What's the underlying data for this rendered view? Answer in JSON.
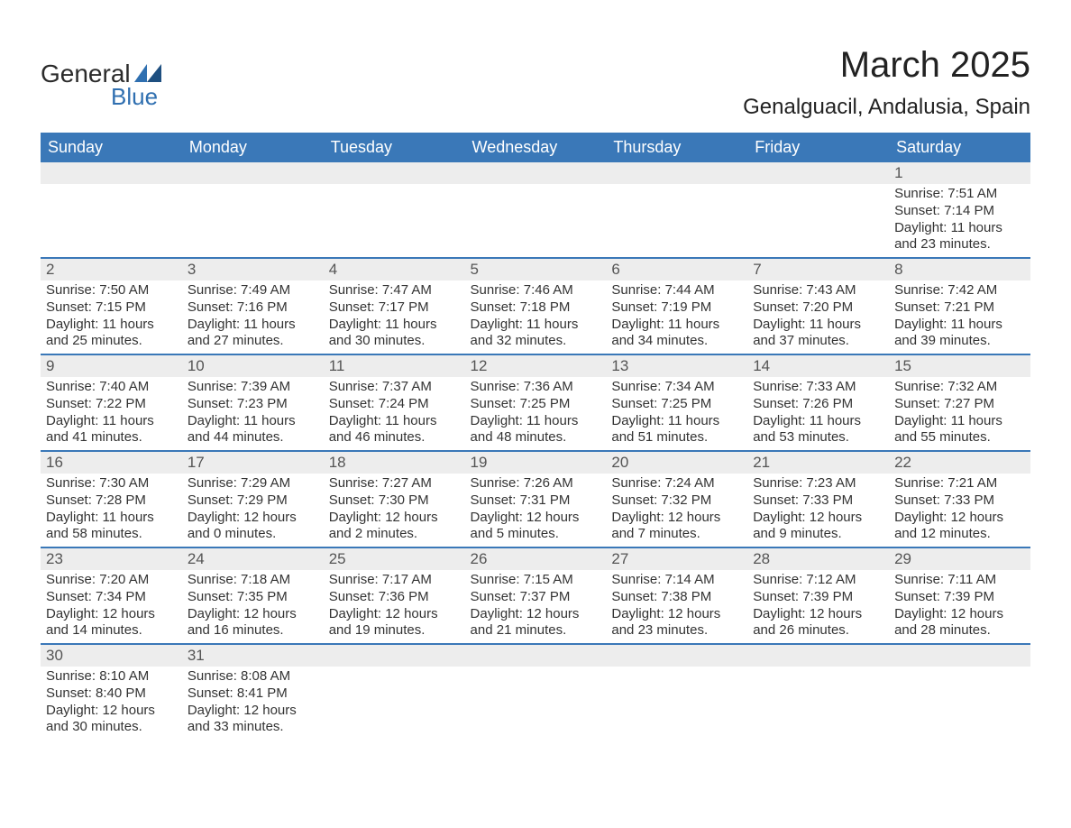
{
  "logo": {
    "line1": "General",
    "line2": "Blue",
    "accent_color": "#2f6fb0"
  },
  "title": {
    "month": "March 2025",
    "location": "Genalguacil, Andalusia, Spain"
  },
  "colors": {
    "header_bg": "#3a78b8",
    "header_text": "#ffffff",
    "row_sep": "#3a78b8",
    "daynum_bg": "#ededed",
    "text": "#333333"
  },
  "weekdays": [
    "Sunday",
    "Monday",
    "Tuesday",
    "Wednesday",
    "Thursday",
    "Friday",
    "Saturday"
  ],
  "weeks": [
    [
      null,
      null,
      null,
      null,
      null,
      null,
      {
        "n": "1",
        "sr": "Sunrise: 7:51 AM",
        "ss": "Sunset: 7:14 PM",
        "d1": "Daylight: 11 hours",
        "d2": "and 23 minutes."
      }
    ],
    [
      {
        "n": "2",
        "sr": "Sunrise: 7:50 AM",
        "ss": "Sunset: 7:15 PM",
        "d1": "Daylight: 11 hours",
        "d2": "and 25 minutes."
      },
      {
        "n": "3",
        "sr": "Sunrise: 7:49 AM",
        "ss": "Sunset: 7:16 PM",
        "d1": "Daylight: 11 hours",
        "d2": "and 27 minutes."
      },
      {
        "n": "4",
        "sr": "Sunrise: 7:47 AM",
        "ss": "Sunset: 7:17 PM",
        "d1": "Daylight: 11 hours",
        "d2": "and 30 minutes."
      },
      {
        "n": "5",
        "sr": "Sunrise: 7:46 AM",
        "ss": "Sunset: 7:18 PM",
        "d1": "Daylight: 11 hours",
        "d2": "and 32 minutes."
      },
      {
        "n": "6",
        "sr": "Sunrise: 7:44 AM",
        "ss": "Sunset: 7:19 PM",
        "d1": "Daylight: 11 hours",
        "d2": "and 34 minutes."
      },
      {
        "n": "7",
        "sr": "Sunrise: 7:43 AM",
        "ss": "Sunset: 7:20 PM",
        "d1": "Daylight: 11 hours",
        "d2": "and 37 minutes."
      },
      {
        "n": "8",
        "sr": "Sunrise: 7:42 AM",
        "ss": "Sunset: 7:21 PM",
        "d1": "Daylight: 11 hours",
        "d2": "and 39 minutes."
      }
    ],
    [
      {
        "n": "9",
        "sr": "Sunrise: 7:40 AM",
        "ss": "Sunset: 7:22 PM",
        "d1": "Daylight: 11 hours",
        "d2": "and 41 minutes."
      },
      {
        "n": "10",
        "sr": "Sunrise: 7:39 AM",
        "ss": "Sunset: 7:23 PM",
        "d1": "Daylight: 11 hours",
        "d2": "and 44 minutes."
      },
      {
        "n": "11",
        "sr": "Sunrise: 7:37 AM",
        "ss": "Sunset: 7:24 PM",
        "d1": "Daylight: 11 hours",
        "d2": "and 46 minutes."
      },
      {
        "n": "12",
        "sr": "Sunrise: 7:36 AM",
        "ss": "Sunset: 7:25 PM",
        "d1": "Daylight: 11 hours",
        "d2": "and 48 minutes."
      },
      {
        "n": "13",
        "sr": "Sunrise: 7:34 AM",
        "ss": "Sunset: 7:25 PM",
        "d1": "Daylight: 11 hours",
        "d2": "and 51 minutes."
      },
      {
        "n": "14",
        "sr": "Sunrise: 7:33 AM",
        "ss": "Sunset: 7:26 PM",
        "d1": "Daylight: 11 hours",
        "d2": "and 53 minutes."
      },
      {
        "n": "15",
        "sr": "Sunrise: 7:32 AM",
        "ss": "Sunset: 7:27 PM",
        "d1": "Daylight: 11 hours",
        "d2": "and 55 minutes."
      }
    ],
    [
      {
        "n": "16",
        "sr": "Sunrise: 7:30 AM",
        "ss": "Sunset: 7:28 PM",
        "d1": "Daylight: 11 hours",
        "d2": "and 58 minutes."
      },
      {
        "n": "17",
        "sr": "Sunrise: 7:29 AM",
        "ss": "Sunset: 7:29 PM",
        "d1": "Daylight: 12 hours",
        "d2": "and 0 minutes."
      },
      {
        "n": "18",
        "sr": "Sunrise: 7:27 AM",
        "ss": "Sunset: 7:30 PM",
        "d1": "Daylight: 12 hours",
        "d2": "and 2 minutes."
      },
      {
        "n": "19",
        "sr": "Sunrise: 7:26 AM",
        "ss": "Sunset: 7:31 PM",
        "d1": "Daylight: 12 hours",
        "d2": "and 5 minutes."
      },
      {
        "n": "20",
        "sr": "Sunrise: 7:24 AM",
        "ss": "Sunset: 7:32 PM",
        "d1": "Daylight: 12 hours",
        "d2": "and 7 minutes."
      },
      {
        "n": "21",
        "sr": "Sunrise: 7:23 AM",
        "ss": "Sunset: 7:33 PM",
        "d1": "Daylight: 12 hours",
        "d2": "and 9 minutes."
      },
      {
        "n": "22",
        "sr": "Sunrise: 7:21 AM",
        "ss": "Sunset: 7:33 PM",
        "d1": "Daylight: 12 hours",
        "d2": "and 12 minutes."
      }
    ],
    [
      {
        "n": "23",
        "sr": "Sunrise: 7:20 AM",
        "ss": "Sunset: 7:34 PM",
        "d1": "Daylight: 12 hours",
        "d2": "and 14 minutes."
      },
      {
        "n": "24",
        "sr": "Sunrise: 7:18 AM",
        "ss": "Sunset: 7:35 PM",
        "d1": "Daylight: 12 hours",
        "d2": "and 16 minutes."
      },
      {
        "n": "25",
        "sr": "Sunrise: 7:17 AM",
        "ss": "Sunset: 7:36 PM",
        "d1": "Daylight: 12 hours",
        "d2": "and 19 minutes."
      },
      {
        "n": "26",
        "sr": "Sunrise: 7:15 AM",
        "ss": "Sunset: 7:37 PM",
        "d1": "Daylight: 12 hours",
        "d2": "and 21 minutes."
      },
      {
        "n": "27",
        "sr": "Sunrise: 7:14 AM",
        "ss": "Sunset: 7:38 PM",
        "d1": "Daylight: 12 hours",
        "d2": "and 23 minutes."
      },
      {
        "n": "28",
        "sr": "Sunrise: 7:12 AM",
        "ss": "Sunset: 7:39 PM",
        "d1": "Daylight: 12 hours",
        "d2": "and 26 minutes."
      },
      {
        "n": "29",
        "sr": "Sunrise: 7:11 AM",
        "ss": "Sunset: 7:39 PM",
        "d1": "Daylight: 12 hours",
        "d2": "and 28 minutes."
      }
    ],
    [
      {
        "n": "30",
        "sr": "Sunrise: 8:10 AM",
        "ss": "Sunset: 8:40 PM",
        "d1": "Daylight: 12 hours",
        "d2": "and 30 minutes."
      },
      {
        "n": "31",
        "sr": "Sunrise: 8:08 AM",
        "ss": "Sunset: 8:41 PM",
        "d1": "Daylight: 12 hours",
        "d2": "and 33 minutes."
      },
      null,
      null,
      null,
      null,
      null
    ]
  ]
}
